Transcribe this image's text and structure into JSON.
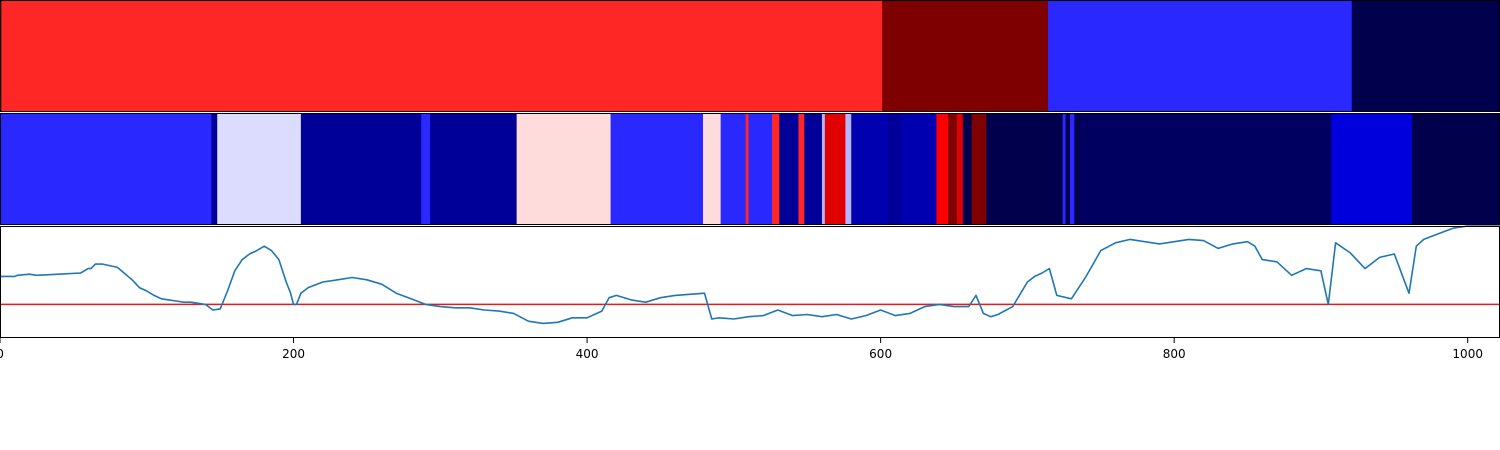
{
  "chart_data": [
    {
      "type": "heatmap",
      "panel": "top-state-bar",
      "segments": [
        {
          "start": 0,
          "end": 1,
          "color": "#7f0000"
        },
        {
          "start": 1,
          "end": 601,
          "color": "#ff2626"
        },
        {
          "start": 601,
          "end": 714,
          "color": "#7f0000"
        },
        {
          "start": 714,
          "end": 921,
          "color": "#2828ff"
        },
        {
          "start": 921,
          "end": 1022,
          "color": "#00004c"
        }
      ]
    },
    {
      "type": "heatmap",
      "panel": "middle-state-bar",
      "segments": [
        {
          "start": 0,
          "end": 144,
          "color": "#2828ff"
        },
        {
          "start": 144,
          "end": 148,
          "color": "#000099"
        },
        {
          "start": 148,
          "end": 205,
          "color": "#dcdcfe"
        },
        {
          "start": 205,
          "end": 287,
          "color": "#000099"
        },
        {
          "start": 287,
          "end": 293,
          "color": "#2828ff"
        },
        {
          "start": 293,
          "end": 352,
          "color": "#000099"
        },
        {
          "start": 352,
          "end": 416,
          "color": "#ffdcdc"
        },
        {
          "start": 416,
          "end": 479,
          "color": "#2828ff"
        },
        {
          "start": 479,
          "end": 491,
          "color": "#ffdcdc"
        },
        {
          "start": 491,
          "end": 508,
          "color": "#2828ff"
        },
        {
          "start": 508,
          "end": 510,
          "color": "#ff2626"
        },
        {
          "start": 510,
          "end": 526,
          "color": "#2828ff"
        },
        {
          "start": 526,
          "end": 531,
          "color": "#ff2626"
        },
        {
          "start": 531,
          "end": 544,
          "color": "#000099"
        },
        {
          "start": 544,
          "end": 548,
          "color": "#ff2626"
        },
        {
          "start": 548,
          "end": 560,
          "color": "#000099"
        },
        {
          "start": 560,
          "end": 562,
          "color": "#b4b4ff"
        },
        {
          "start": 562,
          "end": 576,
          "color": "#e00000"
        },
        {
          "start": 576,
          "end": 580,
          "color": "#b4b4ff"
        },
        {
          "start": 580,
          "end": 605,
          "color": "#0000b0"
        },
        {
          "start": 605,
          "end": 614,
          "color": "#000099"
        },
        {
          "start": 614,
          "end": 638,
          "color": "#0000b0"
        },
        {
          "start": 638,
          "end": 646,
          "color": "#ff0000"
        },
        {
          "start": 646,
          "end": 652,
          "color": "#7f0000"
        },
        {
          "start": 652,
          "end": 656,
          "color": "#e00000"
        },
        {
          "start": 656,
          "end": 662,
          "color": "#00004c"
        },
        {
          "start": 662,
          "end": 672,
          "color": "#7f0000"
        },
        {
          "start": 672,
          "end": 724,
          "color": "#00004c"
        },
        {
          "start": 724,
          "end": 726,
          "color": "#2828ff"
        },
        {
          "start": 726,
          "end": 729,
          "color": "#00004c"
        },
        {
          "start": 729,
          "end": 732,
          "color": "#2828ff"
        },
        {
          "start": 732,
          "end": 736,
          "color": "#00004c"
        },
        {
          "start": 736,
          "end": 907,
          "color": "#000060"
        },
        {
          "start": 907,
          "end": 962,
          "color": "#0000dd"
        },
        {
          "start": 962,
          "end": 1022,
          "color": "#00004c"
        }
      ]
    },
    {
      "type": "line",
      "panel": "bottom-signal",
      "xlim": [
        0,
        1022
      ],
      "ylim": [
        0,
        1
      ],
      "grid": false,
      "series": [
        {
          "color": "#1f77b4",
          "x": [
            0,
            10,
            12,
            20,
            25,
            40,
            55,
            60,
            62,
            65,
            70,
            80,
            90,
            95,
            100,
            105,
            110,
            115,
            120,
            125,
            130,
            140,
            145,
            150,
            155,
            160,
            165,
            170,
            175,
            180,
            185,
            190,
            195,
            198,
            200,
            202,
            205,
            210,
            220,
            230,
            240,
            250,
            260,
            270,
            280,
            290,
            300,
            310,
            320,
            330,
            340,
            350,
            360,
            370,
            380,
            390,
            400,
            410,
            415,
            420,
            430,
            440,
            450,
            460,
            470,
            480,
            485,
            490,
            500,
            510,
            520,
            530,
            540,
            550,
            560,
            570,
            580,
            590,
            600,
            610,
            620,
            630,
            640,
            650,
            660,
            665,
            670,
            675,
            680,
            690,
            700,
            705,
            710,
            715,
            720,
            730,
            740,
            750,
            760,
            770,
            780,
            790,
            800,
            810,
            820,
            830,
            840,
            850,
            855,
            860,
            870,
            880,
            890,
            900,
            905,
            910,
            920,
            930,
            940,
            950,
            960,
            965,
            970,
            980,
            990,
            1000,
            1010,
            1022
          ],
          "y": [
            0.55,
            0.55,
            0.56,
            0.57,
            0.56,
            0.57,
            0.58,
            0.62,
            0.62,
            0.66,
            0.66,
            0.63,
            0.52,
            0.45,
            0.42,
            0.38,
            0.35,
            0.34,
            0.33,
            0.32,
            0.32,
            0.3,
            0.25,
            0.26,
            0.42,
            0.6,
            0.7,
            0.75,
            0.78,
            0.82,
            0.78,
            0.7,
            0.5,
            0.4,
            0.3,
            0.3,
            0.4,
            0.45,
            0.5,
            0.52,
            0.54,
            0.52,
            0.48,
            0.4,
            0.35,
            0.3,
            0.28,
            0.27,
            0.27,
            0.25,
            0.24,
            0.22,
            0.15,
            0.13,
            0.14,
            0.18,
            0.18,
            0.24,
            0.36,
            0.38,
            0.34,
            0.32,
            0.36,
            0.38,
            0.39,
            0.4,
            0.17,
            0.18,
            0.17,
            0.19,
            0.2,
            0.25,
            0.2,
            0.21,
            0.19,
            0.21,
            0.17,
            0.2,
            0.25,
            0.2,
            0.22,
            0.28,
            0.3,
            0.28,
            0.28,
            0.38,
            0.22,
            0.19,
            0.21,
            0.28,
            0.5,
            0.55,
            0.58,
            0.62,
            0.38,
            0.35,
            0.55,
            0.78,
            0.85,
            0.88,
            0.86,
            0.84,
            0.86,
            0.88,
            0.87,
            0.8,
            0.84,
            0.86,
            0.82,
            0.7,
            0.68,
            0.56,
            0.62,
            0.6,
            0.3,
            0.85,
            0.76,
            0.62,
            0.72,
            0.75,
            0.4,
            0.82,
            0.88,
            0.93,
            0.98,
            1.0,
            1.0,
            1.0
          ]
        }
      ],
      "reference_lines": [
        {
          "orientation": "horizontal",
          "y": 0.3,
          "color": "#e41a1c"
        }
      ],
      "xticks": [
        0,
        200,
        400,
        600,
        800,
        1000
      ],
      "xtick_labels": [
        "0",
        "200",
        "400",
        "600",
        "800",
        "1000"
      ]
    }
  ]
}
